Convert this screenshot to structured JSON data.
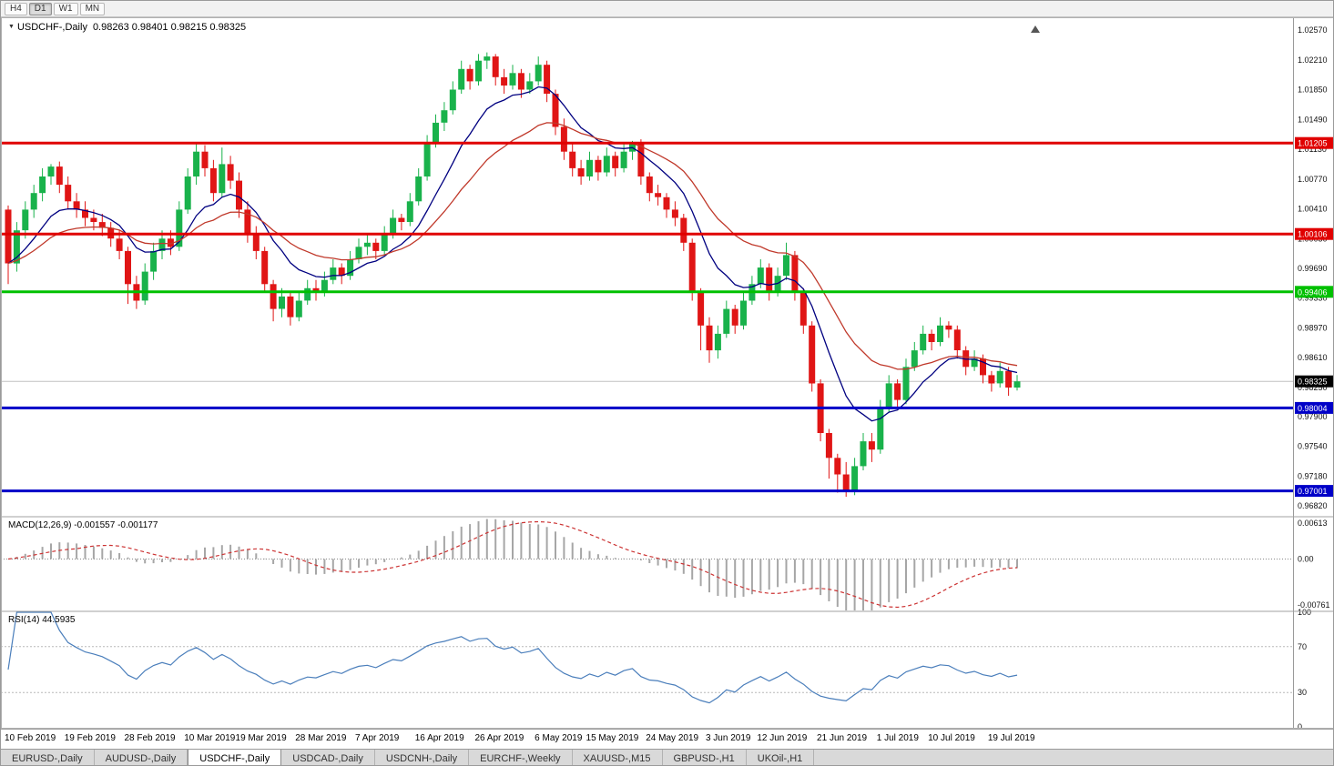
{
  "toolbar": {
    "timeframes": [
      {
        "label": "H4",
        "active": false
      },
      {
        "label": "D1",
        "active": true
      },
      {
        "label": "W1",
        "active": false
      },
      {
        "label": "MN",
        "active": false
      }
    ]
  },
  "chart": {
    "dropdown_icon": "▼",
    "title": "USDCHF-,Daily",
    "ohlc_text": "0.98263 0.98401 0.98215 0.98325"
  },
  "indicators": {
    "macd": {
      "label": "MACD(12,26,9)",
      "value_main": "-0.001557",
      "value_signal": "-0.001177",
      "axis_top": "0.00613",
      "axis_zero": "0.00",
      "axis_bottom": "-0.00761"
    },
    "rsi": {
      "label": "RSI(14)",
      "value": "44.5935",
      "axis": [
        "100",
        "70",
        "30",
        "0"
      ],
      "levels": [
        70,
        30
      ]
    }
  },
  "tabs": [
    {
      "label": "EURUSD-,Daily",
      "active": false
    },
    {
      "label": "AUDUSD-,Daily",
      "active": false
    },
    {
      "label": "USDCHF-,Daily",
      "active": true
    },
    {
      "label": "USDCAD-,Daily",
      "active": false
    },
    {
      "label": "USDCNH-,Daily",
      "active": false
    },
    {
      "label": "EURCHF-,Weekly",
      "active": false
    },
    {
      "label": "XAUUSD-,M15",
      "active": false
    },
    {
      "label": "GBPUSD-,H1",
      "active": false
    },
    {
      "label": "UKOil-,H1",
      "active": false
    }
  ],
  "chart_data": {
    "type": "candlestick",
    "symbol": "USDCHF",
    "timeframe": "Daily",
    "price_range": [
      0.967,
      1.0268
    ],
    "macd_range": [
      -0.00761,
      0.00613
    ],
    "colors": {
      "up": "#19b24b",
      "down": "#e01515",
      "ma_fast": "#000080",
      "ma_slow": "#c0392b",
      "macd_hist": "#a6a6a6",
      "macd_signal": "#cc3333",
      "rsi_line": "#4a7ebb",
      "bid_line": "#c0c0c0"
    },
    "moving_averages": [
      {
        "period": 10,
        "color": "#000080"
      },
      {
        "period": 22,
        "color": "#c0392b"
      }
    ],
    "levels": [
      {
        "value": 1.01205,
        "label": "1.01205",
        "color": "#e00000",
        "width": 3
      },
      {
        "value": 1.00106,
        "label": "1.00106",
        "color": "#e00000",
        "width": 3
      },
      {
        "value": 0.99406,
        "label": "0.99406",
        "color": "#00c000",
        "width": 3
      },
      {
        "value": 0.98004,
        "label": "0.98004",
        "color": "#0000c8",
        "width": 3
      },
      {
        "value": 0.97001,
        "label": "0.97001",
        "color": "#0000c8",
        "width": 3
      }
    ],
    "current_price": {
      "value": 0.98325,
      "label": "0.98325"
    },
    "price_ticks": [
      "1.02570",
      "1.02210",
      "1.01850",
      "1.01490",
      "1.01130",
      "1.00770",
      "1.00410",
      "1.00050",
      "0.99690",
      "0.99330",
      "0.98970",
      "0.98610",
      "0.98250",
      "0.97900",
      "0.97540",
      "0.97180",
      "0.96820"
    ],
    "date_labels": [
      [
        "10 Feb 2019",
        0
      ],
      [
        "19 Feb 2019",
        7
      ],
      [
        "28 Feb 2019",
        14
      ],
      [
        "10 Mar 2019",
        21
      ],
      [
        "19 Mar 2019",
        27
      ],
      [
        "28 Mar 2019",
        34
      ],
      [
        "7 Apr 2019",
        41
      ],
      [
        "16 Apr 2019",
        48
      ],
      [
        "26 Apr 2019",
        55
      ],
      [
        "6 May 2019",
        62
      ],
      [
        "15 May 2019",
        68
      ],
      [
        "24 May 2019",
        75
      ],
      [
        "3 Jun 2019",
        82
      ],
      [
        "12 Jun 2019",
        88
      ],
      [
        "21 Jun 2019",
        95
      ],
      [
        "1 Jul 2019",
        102
      ],
      [
        "10 Jul 2019",
        108
      ],
      [
        "19 Jul 2019",
        115
      ]
    ],
    "candles": [
      [
        1.004,
        1.0045,
        0.995,
        0.9975
      ],
      [
        0.9975,
        1.0025,
        0.9965,
        1.0015
      ],
      [
        1.0015,
        1.005,
        1.0005,
        1.004
      ],
      [
        1.004,
        1.007,
        1.003,
        1.006
      ],
      [
        1.006,
        1.009,
        1.005,
        1.008
      ],
      [
        1.008,
        1.0095,
        1.007,
        1.0092
      ],
      [
        1.0092,
        1.0098,
        1.006,
        1.007
      ],
      [
        1.007,
        1.008,
        1.004,
        1.005
      ],
      [
        1.005,
        1.006,
        1.003,
        1.004
      ],
      [
        1.004,
        1.005,
        1.002,
        1.003
      ],
      [
        1.003,
        1.004,
        1.0015,
        1.0025
      ],
      [
        1.0025,
        1.0035,
        1.0008,
        1.0018
      ],
      [
        1.0018,
        1.0025,
        0.9995,
        1.0005
      ],
      [
        1.0005,
        1.0015,
        0.998,
        0.999
      ],
      [
        0.999,
        0.9995,
        0.9926,
        0.995
      ],
      [
        0.995,
        0.996,
        0.992,
        0.993
      ],
      [
        0.993,
        0.9975,
        0.9925,
        0.9965
      ],
      [
        0.9965,
        1.0,
        0.9955,
        0.999
      ],
      [
        0.999,
        1.0015,
        0.998,
        1.0005
      ],
      [
        1.0005,
        1.0015,
        0.9985,
        0.9995
      ],
      [
        0.9995,
        1.005,
        0.999,
        1.004
      ],
      [
        1.004,
        1.009,
        1.0035,
        1.008
      ],
      [
        1.008,
        1.01205,
        1.007,
        1.011
      ],
      [
        1.011,
        1.0118,
        1.008,
        1.009
      ],
      [
        1.009,
        1.01,
        1.005,
        1.006
      ],
      [
        1.006,
        1.0115,
        1.0055,
        1.0095
      ],
      [
        1.0095,
        1.0105,
        1.0065,
        1.0075
      ],
      [
        1.0075,
        1.0085,
        1.003,
        1.004
      ],
      [
        1.004,
        1.005,
        1.0,
        1.001
      ],
      [
        1.001,
        1.002,
        0.998,
        0.999
      ],
      [
        0.999,
        0.9995,
        0.994,
        0.995
      ],
      [
        0.995,
        0.9955,
        0.9905,
        0.992
      ],
      [
        0.992,
        0.9945,
        0.991,
        0.9935
      ],
      [
        0.9935,
        0.994,
        0.99,
        0.991
      ],
      [
        0.991,
        0.994,
        0.9905,
        0.993
      ],
      [
        0.993,
        0.9955,
        0.9925,
        0.9945
      ],
      [
        0.9945,
        0.9955,
        0.993,
        0.994
      ],
      [
        0.994,
        0.9965,
        0.9935,
        0.9955
      ],
      [
        0.9955,
        0.998,
        0.995,
        0.997
      ],
      [
        0.997,
        0.9975,
        0.995,
        0.996
      ],
      [
        0.996,
        0.999,
        0.9955,
        0.998
      ],
      [
        0.998,
        1.0005,
        0.9975,
        0.9995
      ],
      [
        0.9995,
        1.001,
        0.9985,
        1.0
      ],
      [
        1.0,
        1.0005,
        0.998,
        0.999
      ],
      [
        0.999,
        1.002,
        0.9985,
        1.001
      ],
      [
        1.001,
        1.004,
        1.0005,
        1.003
      ],
      [
        1.003,
        1.0035,
        1.0015,
        1.0025
      ],
      [
        1.0025,
        1.006,
        1.002,
        1.005
      ],
      [
        1.005,
        1.009,
        1.0045,
        1.008
      ],
      [
        1.008,
        1.013,
        1.0075,
        1.012
      ],
      [
        1.012,
        1.0155,
        1.0115,
        1.0145
      ],
      [
        1.0145,
        1.017,
        1.0135,
        1.016
      ],
      [
        1.016,
        1.0195,
        1.0155,
        1.0185
      ],
      [
        1.0185,
        1.022,
        1.018,
        1.021
      ],
      [
        1.021,
        1.0215,
        1.0185,
        1.0195
      ],
      [
        1.0195,
        1.0228,
        1.019,
        1.022
      ],
      [
        1.022,
        1.023,
        1.021,
        1.0225
      ],
      [
        1.0225,
        1.0228,
        1.019,
        1.02
      ],
      [
        1.02,
        1.021,
        1.018,
        1.019
      ],
      [
        1.019,
        1.0215,
        1.0185,
        1.0205
      ],
      [
        1.0205,
        1.021,
        1.0175,
        1.0185
      ],
      [
        1.0185,
        1.0205,
        1.018,
        1.0195
      ],
      [
        1.0195,
        1.0225,
        1.019,
        1.0215
      ],
      [
        1.0215,
        1.022,
        1.017,
        1.018
      ],
      [
        1.018,
        1.0185,
        1.013,
        1.014
      ],
      [
        1.014,
        1.015,
        1.01,
        1.011
      ],
      [
        1.011,
        1.012,
        1.008,
        1.009
      ],
      [
        1.009,
        1.01,
        1.007,
        1.008
      ],
      [
        1.008,
        1.011,
        1.0075,
        1.01
      ],
      [
        1.01,
        1.0105,
        1.0075,
        1.0085
      ],
      [
        1.0085,
        1.0115,
        1.008,
        1.0105
      ],
      [
        1.0105,
        1.011,
        1.008,
        1.009
      ],
      [
        1.009,
        1.012,
        1.0085,
        1.011
      ],
      [
        1.011,
        1.0123,
        1.01,
        1.012
      ],
      [
        1.012,
        1.0125,
        1.007,
        1.008
      ],
      [
        1.008,
        1.0085,
        1.005,
        1.006
      ],
      [
        1.006,
        1.007,
        1.0045,
        1.0055
      ],
      [
        1.0055,
        1.006,
        1.003,
        1.004
      ],
      [
        1.004,
        1.005,
        1.002,
        1.003
      ],
      [
        1.003,
        1.0035,
        0.999,
        1.0
      ],
      [
        1.0,
        1.0005,
        0.993,
        0.994
      ],
      [
        0.994,
        0.9945,
        0.987,
        0.99
      ],
      [
        0.99,
        0.991,
        0.9855,
        0.987
      ],
      [
        0.987,
        0.99,
        0.986,
        0.989
      ],
      [
        0.989,
        0.993,
        0.9885,
        0.992
      ],
      [
        0.992,
        0.9925,
        0.989,
        0.99
      ],
      [
        0.99,
        0.994,
        0.9895,
        0.993
      ],
      [
        0.993,
        0.996,
        0.9925,
        0.995
      ],
      [
        0.995,
        0.998,
        0.9945,
        0.997
      ],
      [
        0.997,
        0.9975,
        0.993,
        0.994
      ],
      [
        0.994,
        0.997,
        0.9935,
        0.996
      ],
      [
        0.996,
        1.0,
        0.9955,
        0.9985
      ],
      [
        0.9985,
        0.999,
        0.993,
        0.994
      ],
      [
        0.994,
        0.9945,
        0.989,
        0.99
      ],
      [
        0.99,
        0.9905,
        0.982,
        0.983
      ],
      [
        0.983,
        0.9835,
        0.976,
        0.977
      ],
      [
        0.977,
        0.9775,
        0.9715,
        0.974
      ],
      [
        0.974,
        0.9745,
        0.9698,
        0.972
      ],
      [
        0.972,
        0.9735,
        0.9693,
        0.97
      ],
      [
        0.97,
        0.974,
        0.9695,
        0.973
      ],
      [
        0.973,
        0.977,
        0.9725,
        0.976
      ],
      [
        0.976,
        0.977,
        0.9735,
        0.975
      ],
      [
        0.975,
        0.981,
        0.9745,
        0.98
      ],
      [
        0.98,
        0.984,
        0.9795,
        0.983
      ],
      [
        0.983,
        0.9835,
        0.98,
        0.981
      ],
      [
        0.981,
        0.986,
        0.9805,
        0.985
      ],
      [
        0.985,
        0.988,
        0.9845,
        0.987
      ],
      [
        0.987,
        0.99,
        0.9865,
        0.989
      ],
      [
        0.989,
        0.9895,
        0.987,
        0.988
      ],
      [
        0.988,
        0.991,
        0.9875,
        0.99
      ],
      [
        0.99,
        0.9905,
        0.9885,
        0.9895
      ],
      [
        0.9895,
        0.99,
        0.986,
        0.987
      ],
      [
        0.987,
        0.9875,
        0.984,
        0.985
      ],
      [
        0.985,
        0.987,
        0.9845,
        0.986
      ],
      [
        0.986,
        0.9865,
        0.983,
        0.984
      ],
      [
        0.984,
        0.9845,
        0.982,
        0.983
      ],
      [
        0.983,
        0.9855,
        0.9825,
        0.9845
      ],
      [
        0.9845,
        0.985,
        0.9815,
        0.9825
      ],
      [
        0.9825,
        0.98401,
        0.98215,
        0.98325
      ]
    ]
  }
}
